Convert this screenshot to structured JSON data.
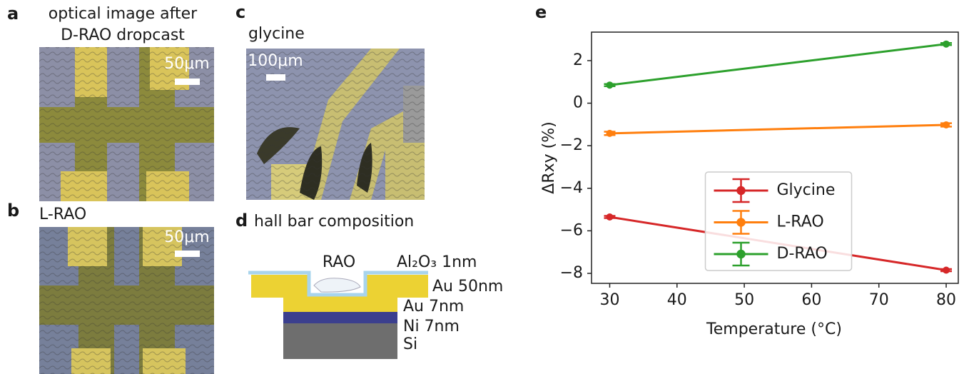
{
  "panel_a": {
    "letter": "a",
    "title": [
      "optical image after",
      "D-RAO dropcast"
    ],
    "scale_bar": "50μm"
  },
  "panel_b": {
    "letter": "b",
    "title": "L-RAO",
    "scale_bar": "50μm"
  },
  "panel_c": {
    "letter": "c",
    "title": "glycine",
    "scale_bar": "100μm"
  },
  "panel_d": {
    "letter": "d",
    "title": "hall bar composition",
    "labels": {
      "rao": "RAO",
      "al2o3": "Al₂O₃ 1nm",
      "au50": "Au 50nm",
      "au7": "Au 7nm",
      "ni": "Ni 7nm",
      "si": "Si"
    }
  },
  "chart_data": {
    "type": "line",
    "panel_letter": "e",
    "x_label": "Temperature (°C)",
    "y_label": "ΔRxy (%)",
    "x": [
      30,
      80
    ],
    "series": [
      {
        "name": "Glycine",
        "color": "#d62728",
        "values": [
          -5.35,
          -7.85
        ],
        "errors": [
          0.05,
          0.05
        ]
      },
      {
        "name": "L-RAO",
        "color": "#ff7f0e",
        "values": [
          -1.42,
          -1.02
        ],
        "errors": [
          0.08,
          0.08
        ]
      },
      {
        "name": "D-RAO",
        "color": "#2ca02c",
        "values": [
          0.85,
          2.78
        ],
        "errors": [
          0.05,
          0.05
        ]
      }
    ],
    "xlim": [
      27.3,
      81.8
    ],
    "xticks": [
      30,
      40,
      50,
      60,
      70,
      80
    ],
    "ylim": [
      -8.47,
      3.34
    ],
    "yticks": [
      {
        "value": -8,
        "label": "−8"
      },
      {
        "value": -6,
        "label": "−6"
      },
      {
        "value": -4,
        "label": "−4"
      },
      {
        "value": -2,
        "label": "−2"
      },
      0,
      2
    ],
    "legend": "center"
  }
}
